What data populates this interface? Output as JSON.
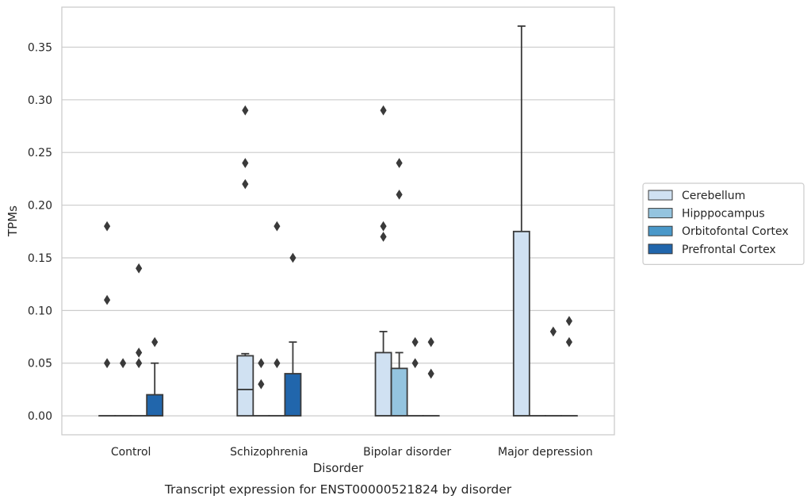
{
  "caption": "Transcript expression for ENST00000521824 by disorder",
  "chart_data": {
    "type": "box",
    "title": "",
    "xlabel": "Disorder",
    "ylabel": "TPMs",
    "categories": [
      "Control",
      "Schizophrenia",
      "Bipolar disorder",
      "Major depression"
    ],
    "ylim": [
      -0.018,
      0.388
    ],
    "yticks": [
      0.0,
      0.05,
      0.1,
      0.15,
      0.2,
      0.25,
      0.3,
      0.35
    ],
    "ytick_labels": [
      "0.00",
      "0.05",
      "0.10",
      "0.15",
      "0.20",
      "0.25",
      "0.30",
      "0.35"
    ],
    "grid": "horizontal",
    "legend_position": "right",
    "series": [
      {
        "name": "Cerebellum",
        "color": "#d0e1f2",
        "boxes": [
          {
            "q1": 0,
            "median": 0,
            "q3": 0,
            "whisker_low": 0,
            "whisker_high": 0,
            "outliers": [
              0.18,
              0.11,
              0.05
            ]
          },
          {
            "q1": 0,
            "median": 0.025,
            "q3": 0.057,
            "whisker_low": 0,
            "whisker_high": 0.059,
            "outliers": [
              0.29,
              0.24,
              0.22
            ]
          },
          {
            "q1": 0,
            "median": 0,
            "q3": 0.06,
            "whisker_low": 0,
            "whisker_high": 0.08,
            "outliers": [
              0.29,
              0.18,
              0.17
            ]
          },
          {
            "q1": 0,
            "median": 0,
            "q3": 0.175,
            "whisker_low": 0,
            "whisker_high": 0.37,
            "outliers": []
          }
        ]
      },
      {
        "name": "Hipppocampus",
        "color": "#94c4df",
        "boxes": [
          {
            "q1": 0,
            "median": 0,
            "q3": 0,
            "whisker_low": 0,
            "whisker_high": 0,
            "outliers": [
              0.05
            ]
          },
          {
            "q1": 0,
            "median": 0,
            "q3": 0,
            "whisker_low": 0,
            "whisker_high": 0,
            "outliers": [
              0.05,
              0.03
            ]
          },
          {
            "q1": 0,
            "median": 0,
            "q3": 0.045,
            "whisker_low": 0,
            "whisker_high": 0.06,
            "outliers": [
              0.24,
              0.21
            ]
          },
          {
            "q1": 0,
            "median": 0,
            "q3": 0,
            "whisker_low": 0,
            "whisker_high": 0,
            "outliers": []
          }
        ]
      },
      {
        "name": "Orbitofontal Cortex",
        "color": "#4a98c9",
        "boxes": [
          {
            "q1": 0,
            "median": 0,
            "q3": 0,
            "whisker_low": 0,
            "whisker_high": 0,
            "outliers": [
              0.14,
              0.06,
              0.05
            ]
          },
          {
            "q1": 0,
            "median": 0,
            "q3": 0,
            "whisker_low": 0,
            "whisker_high": 0,
            "outliers": [
              0.18,
              0.05
            ]
          },
          {
            "q1": 0,
            "median": 0,
            "q3": 0,
            "whisker_low": 0,
            "whisker_high": 0,
            "outliers": [
              0.07,
              0.05
            ]
          },
          {
            "q1": 0,
            "median": 0,
            "q3": 0,
            "whisker_low": 0,
            "whisker_high": 0,
            "outliers": [
              0.08
            ]
          }
        ]
      },
      {
        "name": "Prefrontal Cortex",
        "color": "#2166ac",
        "boxes": [
          {
            "q1": 0,
            "median": 0,
            "q3": 0.02,
            "whisker_low": 0,
            "whisker_high": 0.05,
            "outliers": [
              0.07
            ]
          },
          {
            "q1": 0,
            "median": 0,
            "q3": 0.04,
            "whisker_low": 0,
            "whisker_high": 0.07,
            "outliers": [
              0.15
            ]
          },
          {
            "q1": 0,
            "median": 0,
            "q3": 0,
            "whisker_low": 0,
            "whisker_high": 0,
            "outliers": [
              0.07,
              0.04
            ]
          },
          {
            "q1": 0,
            "median": 0,
            "q3": 0,
            "whisker_low": 0,
            "whisker_high": 0,
            "outliers": [
              0.09,
              0.07
            ]
          }
        ]
      }
    ]
  }
}
